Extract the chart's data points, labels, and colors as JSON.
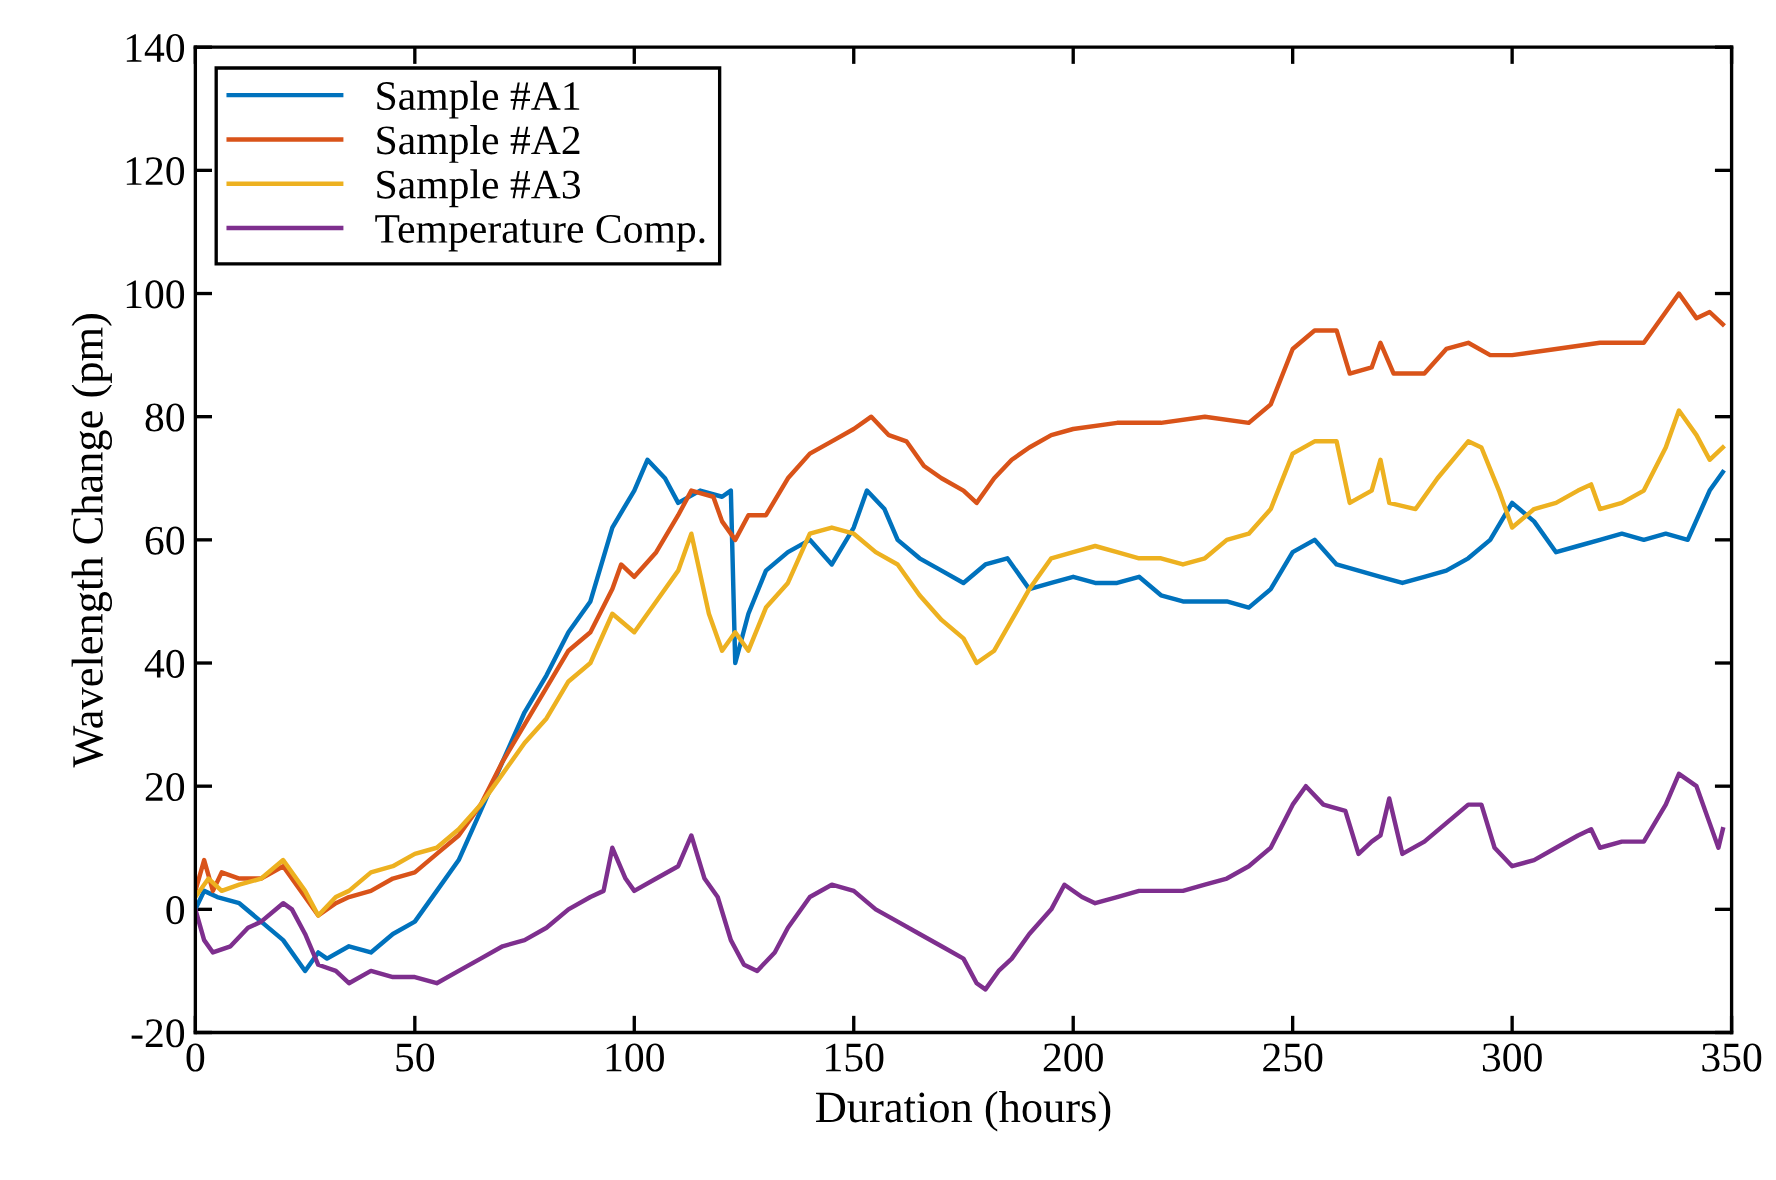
{
  "chart_data": {
    "type": "line",
    "xlabel": "Duration (hours)",
    "ylabel": "Wavelength Change (pm)",
    "xlim": [
      0,
      350
    ],
    "ylim": [
      -20,
      140
    ],
    "xticks": [
      0,
      50,
      100,
      150,
      200,
      250,
      300,
      350
    ],
    "yticks": [
      -20,
      0,
      20,
      40,
      60,
      80,
      100,
      120,
      140
    ],
    "grid": false,
    "legend": "top left",
    "marker": "none",
    "line_style": "solid",
    "series": [
      {
        "name": "Sample #A1",
        "color": "#0072bd",
        "x": [
          0,
          2,
          5,
          10,
          15,
          20,
          25,
          28,
          30,
          35,
          40,
          45,
          50,
          55,
          60,
          65,
          70,
          75,
          80,
          85,
          90,
          95,
          100,
          103,
          107,
          110,
          115,
          120,
          122,
          123,
          126,
          130,
          135,
          140,
          145,
          150,
          153,
          157,
          160,
          165,
          170,
          175,
          180,
          185,
          190,
          195,
          200,
          205,
          210,
          215,
          220,
          225,
          230,
          235,
          240,
          245,
          250,
          255,
          260,
          265,
          270,
          275,
          280,
          285,
          290,
          295,
          300,
          305,
          310,
          315,
          320,
          325,
          330,
          335,
          340,
          345,
          348
        ],
        "values": [
          0,
          3,
          2,
          1,
          -2,
          -5,
          -10,
          -7,
          -8,
          -6,
          -7,
          -4,
          -2,
          3,
          8,
          16,
          24,
          32,
          38,
          45,
          50,
          62,
          68,
          73,
          70,
          66,
          68,
          67,
          68,
          40,
          48,
          55,
          58,
          60,
          56,
          62,
          68,
          65,
          60,
          57,
          55,
          53,
          56,
          57,
          52,
          53,
          54,
          53,
          53,
          54,
          51,
          50,
          50,
          50,
          49,
          52,
          58,
          60,
          56,
          55,
          54,
          53,
          54,
          55,
          57,
          60,
          66,
          63,
          58,
          59,
          60,
          61,
          60,
          61,
          60,
          68,
          71
        ]
      },
      {
        "name": "Sample #A2",
        "color": "#d95319",
        "x": [
          0,
          2,
          4,
          6,
          10,
          15,
          20,
          25,
          28,
          32,
          35,
          40,
          45,
          50,
          55,
          60,
          65,
          70,
          75,
          80,
          85,
          90,
          95,
          97,
          100,
          105,
          110,
          113,
          118,
          120,
          123,
          126,
          130,
          135,
          140,
          145,
          150,
          154,
          158,
          162,
          166,
          170,
          175,
          178,
          182,
          186,
          190,
          195,
          200,
          210,
          220,
          230,
          240,
          245,
          250,
          255,
          260,
          263,
          268,
          270,
          273,
          280,
          285,
          290,
          295,
          300,
          310,
          320,
          330,
          335,
          338,
          342,
          345,
          348
        ],
        "values": [
          3,
          8,
          3,
          6,
          5,
          5,
          7,
          2,
          -1,
          1,
          2,
          3,
          5,
          6,
          9,
          12,
          17,
          24,
          30,
          36,
          42,
          45,
          52,
          56,
          54,
          58,
          64,
          68,
          67,
          63,
          60,
          64,
          64,
          70,
          74,
          76,
          78,
          80,
          77,
          76,
          72,
          70,
          68,
          66,
          70,
          73,
          75,
          77,
          78,
          79,
          79,
          80,
          79,
          82,
          91,
          94,
          94,
          87,
          88,
          92,
          87,
          87,
          91,
          92,
          90,
          90,
          91,
          92,
          92,
          97,
          100,
          96,
          97,
          95
        ]
      },
      {
        "name": "Sample #A3",
        "color": "#edb120",
        "x": [
          0,
          3,
          6,
          10,
          15,
          20,
          25,
          28,
          32,
          35,
          40,
          45,
          50,
          55,
          60,
          65,
          70,
          75,
          80,
          85,
          90,
          95,
          100,
          105,
          110,
          113,
          117,
          120,
          123,
          126,
          130,
          135,
          140,
          145,
          150,
          155,
          160,
          165,
          170,
          175,
          178,
          182,
          186,
          190,
          195,
          200,
          205,
          210,
          215,
          220,
          225,
          230,
          235,
          240,
          245,
          250,
          255,
          260,
          263,
          268,
          270,
          272,
          278,
          283,
          290,
          293,
          297,
          300,
          305,
          310,
          315,
          318,
          320,
          325,
          330,
          335,
          338,
          342,
          345,
          348
        ],
        "values": [
          2,
          5,
          3,
          4,
          5,
          8,
          3,
          -1,
          2,
          3,
          6,
          7,
          9,
          10,
          13,
          17,
          22,
          27,
          31,
          37,
          40,
          48,
          45,
          50,
          55,
          61,
          48,
          42,
          45,
          42,
          49,
          53,
          61,
          62,
          61,
          58,
          56,
          51,
          47,
          44,
          40,
          42,
          47,
          52,
          57,
          58,
          59,
          58,
          57,
          57,
          56,
          57,
          60,
          61,
          65,
          74,
          76,
          76,
          66,
          68,
          73,
          66,
          65,
          70,
          76,
          75,
          68,
          62,
          65,
          66,
          68,
          69,
          65,
          66,
          68,
          75,
          81,
          77,
          73,
          75
        ]
      },
      {
        "name": "Temperature Comp.",
        "color": "#7e2f8e",
        "x": [
          0,
          2,
          4,
          8,
          12,
          15,
          20,
          22,
          25,
          28,
          32,
          35,
          40,
          45,
          50,
          55,
          60,
          65,
          70,
          75,
          80,
          85,
          90,
          93,
          95,
          98,
          100,
          105,
          110,
          113,
          116,
          119,
          122,
          125,
          128,
          132,
          135,
          140,
          145,
          150,
          155,
          160,
          165,
          170,
          175,
          178,
          180,
          183,
          186,
          190,
          195,
          198,
          202,
          205,
          210,
          215,
          220,
          225,
          230,
          235,
          240,
          245,
          250,
          253,
          257,
          262,
          265,
          268,
          270,
          272,
          275,
          280,
          285,
          290,
          293,
          296,
          300,
          305,
          310,
          315,
          318,
          320,
          325,
          330,
          335,
          338,
          342,
          345,
          347,
          348
        ],
        "values": [
          0,
          -5,
          -7,
          -6,
          -3,
          -2,
          1,
          0,
          -4,
          -9,
          -10,
          -12,
          -10,
          -11,
          -11,
          -12,
          -10,
          -8,
          -6,
          -5,
          -3,
          0,
          2,
          3,
          10,
          5,
          3,
          5,
          7,
          12,
          5,
          2,
          -5,
          -9,
          -10,
          -7,
          -3,
          2,
          4,
          3,
          0,
          -2,
          -4,
          -6,
          -8,
          -12,
          -13,
          -10,
          -8,
          -4,
          0,
          4,
          2,
          1,
          2,
          3,
          3,
          3,
          4,
          5,
          7,
          10,
          17,
          20,
          17,
          16,
          9,
          11,
          12,
          18,
          9,
          11,
          14,
          17,
          17,
          10,
          7,
          8,
          10,
          12,
          13,
          10,
          11,
          11,
          17,
          22,
          20,
          14,
          10,
          13
        ]
      }
    ]
  }
}
